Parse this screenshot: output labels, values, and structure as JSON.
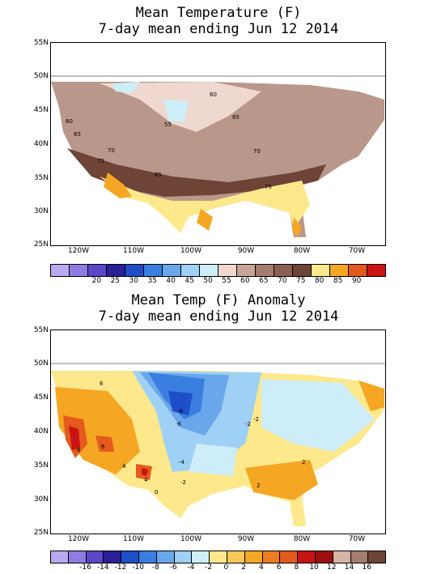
{
  "top": {
    "title1": "Mean Temperature (F)",
    "title2": "7-day mean ending Jun 12 2014",
    "lat_labels": [
      "55N",
      "50N",
      "45N",
      "40N",
      "35N",
      "30N",
      "25N"
    ],
    "lon_labels": [
      "120W",
      "110W",
      "100W",
      "90W",
      "80W",
      "70W"
    ],
    "contour_labels": [
      "60",
      "60",
      "55",
      "65",
      "70",
      "65",
      "75",
      "70",
      "65",
      "75"
    ],
    "legend_labels": [
      "20",
      "25",
      "30",
      "35",
      "40",
      "45",
      "50",
      "55",
      "60",
      "65",
      "70",
      "75",
      "80",
      "85",
      "90"
    ],
    "legend_colors": [
      "#b9a9f0",
      "#8f7ce0",
      "#5b47c8",
      "#2a1f96",
      "#1f4fc8",
      "#3a7ee0",
      "#6aa6ea",
      "#9fd0f5",
      "#cdeef9",
      "#efd8cf",
      "#c9a395",
      "#a47c70",
      "#8c5f54",
      "#6e4437",
      "#fde98c",
      "#f5a623",
      "#e45a1c",
      "#c81414"
    ]
  },
  "bottom": {
    "title1": "Mean Temp (F) Anomaly",
    "title2": "7-day mean ending Jun 12 2014",
    "lat_labels": [
      "55N",
      "50N",
      "45N",
      "40N",
      "35N",
      "30N",
      "25N"
    ],
    "lon_labels": [
      "120W",
      "110W",
      "100W",
      "90W",
      "80W",
      "70W"
    ],
    "contour_labels": [
      "-8",
      "-6",
      "-4",
      "-2",
      "-2",
      "-2",
      "0",
      "2",
      "2",
      "4",
      "6",
      "8",
      "4",
      "6"
    ],
    "legend_labels": [
      "-16",
      "-14",
      "-12",
      "-10",
      "-8",
      "-6",
      "-4",
      "-2",
      "0",
      "2",
      "4",
      "6",
      "8",
      "10",
      "12",
      "14",
      "16"
    ],
    "legend_colors": [
      "#b9a9f0",
      "#8f7ce0",
      "#5b47c8",
      "#2a1f96",
      "#1f4fc8",
      "#3a7ee0",
      "#6aa6ea",
      "#9fd0f5",
      "#cdeef9",
      "#fde98c",
      "#fcc85a",
      "#f5a623",
      "#ee7d1f",
      "#e45a1c",
      "#c81414",
      "#9b0f0f",
      "#d8b4a6",
      "#a47c70",
      "#6e4437"
    ]
  }
}
